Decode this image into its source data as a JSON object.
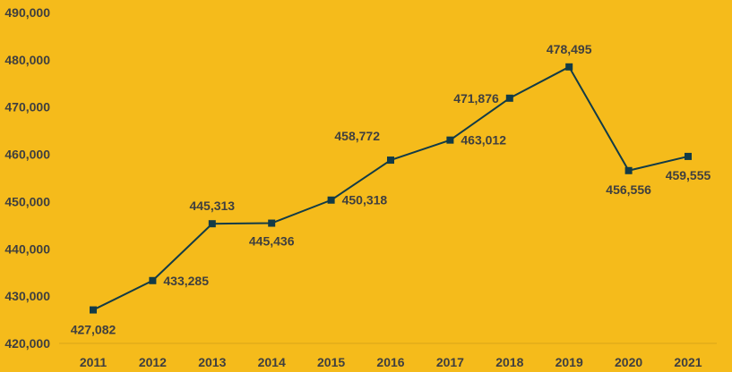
{
  "chart_data": {
    "type": "line",
    "title": "",
    "xlabel": "",
    "ylabel": "",
    "categories": [
      "2011",
      "2012",
      "2013",
      "2014",
      "2015",
      "2016",
      "2017",
      "2018",
      "2019",
      "2020",
      "2021"
    ],
    "series": [
      {
        "values": [
          427082,
          433285,
          445313,
          445436,
          450318,
          458772,
          463012,
          471876,
          478495,
          456556,
          459555
        ],
        "data_labels": [
          "427,082",
          "433,285",
          "445,313",
          "445,436",
          "450,318",
          "458,772",
          "463,012",
          "471,876",
          "478,495",
          "456,556",
          "459,555"
        ],
        "color": "#123B47",
        "marker": "square"
      }
    ],
    "ylim": [
      420000,
      490000
    ],
    "yticks": [
      420000,
      430000,
      440000,
      450000,
      460000,
      470000,
      480000,
      490000
    ],
    "ytick_labels": [
      "420,000",
      "430,000",
      "440,000",
      "450,000",
      "460,000",
      "470,000",
      "480,000",
      "490,000"
    ],
    "grid": false,
    "legend": "none",
    "background_color": "#F5BB1B",
    "text_color": "#3F3F3F",
    "axis_line_color": "#D9A61A"
  }
}
